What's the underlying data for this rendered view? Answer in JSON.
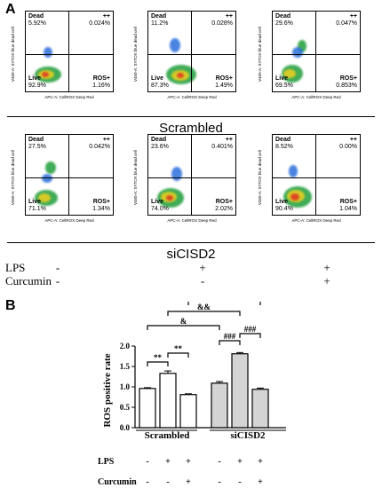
{
  "panels": {
    "a": "A",
    "b": "B"
  },
  "axis_labels": {
    "x": "APC-A: CellROX Deep Red",
    "y": "V450-A: SYTOX blue dead cell"
  },
  "flow_rows": [
    {
      "group_label": "Scrambled",
      "plots": [
        {
          "dead": "5.92%",
          "pp": "0.024%",
          "live": "92.9%",
          "ros": "1.16%"
        },
        {
          "dead": "11.2%",
          "pp": "0.028%",
          "live": "87.3%",
          "ros": "1.49%"
        },
        {
          "dead": "29.6%",
          "pp": "0.047%",
          "live": "69.5%",
          "ros": "0.853%"
        }
      ]
    },
    {
      "group_label": "siCISD2",
      "plots": [
        {
          "dead": "27.5%",
          "pp": "0.042%",
          "live": "71.1%",
          "ros": "1.34%"
        },
        {
          "dead": "23.6%",
          "pp": "0.401%",
          "live": "74.0%",
          "ros": "2.02%"
        },
        {
          "dead": "8.52%",
          "pp": "0.00%",
          "live": "90.4%",
          "ros": "1.04%"
        }
      ]
    }
  ],
  "quadrant_names": {
    "dead": "Dead",
    "pp": "++",
    "live": "Live",
    "ros": "ROS+"
  },
  "conditions_a": {
    "lps_label": "LPS",
    "curcumin_label": "Curcumin",
    "lps": [
      "-",
      "+",
      "+"
    ],
    "curcumin": [
      "-",
      "-",
      "+"
    ]
  },
  "chart_data": {
    "type": "bar",
    "ylabel": "ROS positive rate",
    "ylim": [
      0,
      2.0
    ],
    "yticks": [
      "0.0",
      "0.5",
      "1.0",
      "1.5",
      "2.0"
    ],
    "categories": [
      "Scrambled -/-",
      "Scrambled +/-",
      "Scrambled +/+",
      "siCISD2 -/-",
      "siCISD2 +/-",
      "siCISD2 +/+"
    ],
    "values": [
      0.96,
      1.33,
      0.81,
      1.09,
      1.81,
      0.94
    ],
    "errors": [
      0.02,
      0.06,
      0.02,
      0.04,
      0.03,
      0.03
    ],
    "fills": [
      "#ffffff",
      "#ffffff",
      "#ffffff",
      "#d4d4d4",
      "#d4d4d4",
      "#d4d4d4"
    ],
    "groups": [
      "Scrambled",
      "siCISD2"
    ],
    "lps_label": "LPS",
    "curcumin_label": "Curcumin",
    "lps": [
      "-",
      "+",
      "+",
      "-",
      "+",
      "+"
    ],
    "curcumin": [
      "-",
      "-",
      "+",
      "-",
      "-",
      "+"
    ],
    "annotations": [
      "**",
      "**",
      "###",
      "###",
      "&",
      "&&",
      "&"
    ]
  }
}
